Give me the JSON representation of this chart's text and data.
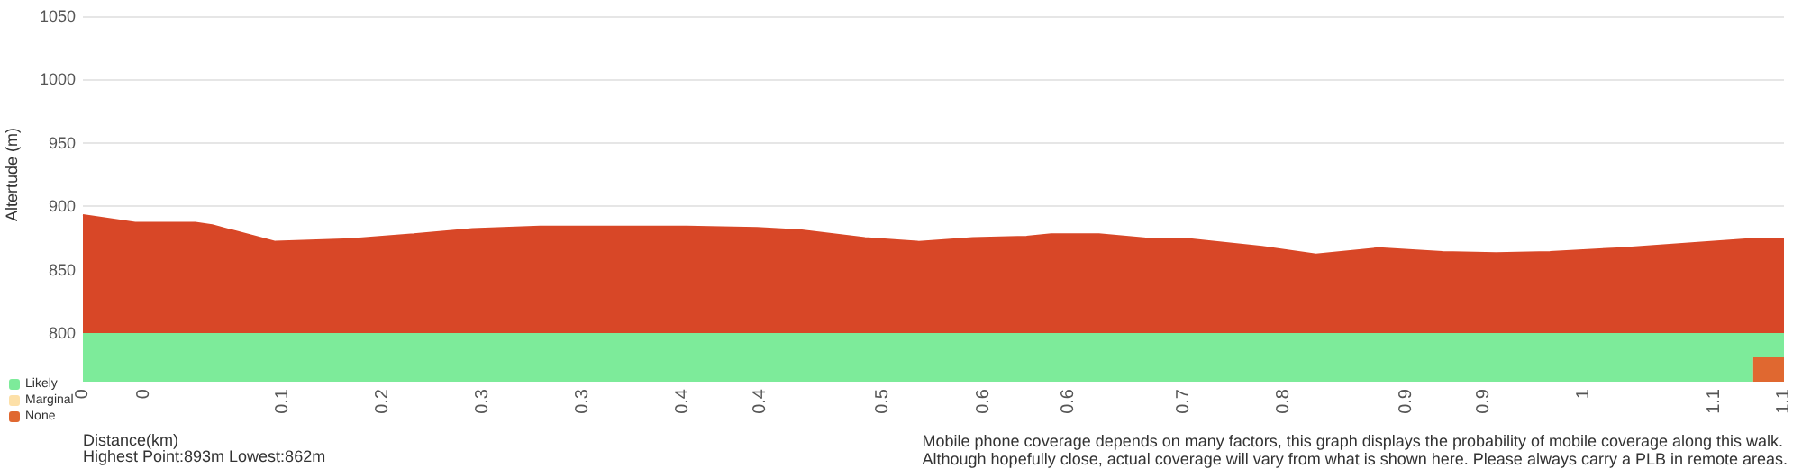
{
  "chart_data": [
    {
      "type": "area",
      "ylabel": "Altertude (m)",
      "x": [
        0,
        0.034,
        0.073,
        0.084,
        0.125,
        0.174,
        0.215,
        0.253,
        0.297,
        0.35,
        0.391,
        0.438,
        0.467,
        0.508,
        0.543,
        0.578,
        0.613,
        0.629,
        0.66,
        0.695,
        0.719,
        0.766,
        0.801,
        0.842,
        0.883,
        0.918,
        0.953,
        1.0,
        1.047,
        1.082,
        1.105
      ],
      "series": [
        {
          "color": "#d84727",
          "values": [
            893,
            887,
            887,
            885,
            872,
            874,
            878,
            882,
            884,
            884,
            884,
            883,
            881,
            875,
            872,
            875,
            876,
            878,
            878,
            874,
            874,
            868,
            862,
            867,
            864,
            863,
            864,
            867,
            871,
            874,
            874
          ]
        }
      ],
      "xlim": [
        0,
        1.105
      ],
      "ylim": [
        800,
        1050
      ],
      "yticks": [
        800,
        850,
        900,
        950,
        1000,
        1050
      ],
      "grid": "y",
      "tick_labels": "y"
    },
    {
      "type": "bar",
      "orientation": "horizontal",
      "stacked": true,
      "categories": [
        null,
        null
      ],
      "xlabel": "Distance(km)",
      "legend": "bottom left",
      "series": [
        {
          "name": "Likely",
          "color": "#7deb9a",
          "values": [
            1.105,
            1.085
          ]
        },
        {
          "name": "Marginal",
          "color": "#fde0a8",
          "values": [
            null,
            null
          ]
        },
        {
          "name": "None",
          "color": "#e06830",
          "values": [
            null,
            0.02
          ]
        }
      ],
      "xlim": [
        0,
        1.105
      ],
      "xticks": [
        {
          "value": 0,
          "label": "0"
        },
        {
          "value": 0.04,
          "label": "0"
        },
        {
          "value": 0.13,
          "label": "0.1"
        },
        {
          "value": 0.195,
          "label": "0.2"
        },
        {
          "value": 0.26,
          "label": "0.3"
        },
        {
          "value": 0.325,
          "label": "0.3"
        },
        {
          "value": 0.39,
          "label": "0.4"
        },
        {
          "value": 0.44,
          "label": "0.4"
        },
        {
          "value": 0.52,
          "label": "0.5"
        },
        {
          "value": 0.585,
          "label": "0.6"
        },
        {
          "value": 0.64,
          "label": "0.6"
        },
        {
          "value": 0.715,
          "label": "0.7"
        },
        {
          "value": 0.78,
          "label": "0.8"
        },
        {
          "value": 0.86,
          "label": "0.9"
        },
        {
          "value": 0.91,
          "label": "0.9"
        },
        {
          "value": 0.975,
          "label": "1"
        },
        {
          "value": 1.06,
          "label": "1.1"
        },
        {
          "value": 1.105,
          "label": "1.1"
        }
      ],
      "annotations": [
        "Highest Point:893m Lowest:862m",
        "Mobile phone coverage depends on many factors, this graph displays the probability of mobile coverage along this walk.\nAlthough hopefully close, actual coverage will vary from what is shown here. Please always carry a PLB in remote areas."
      ]
    }
  ]
}
